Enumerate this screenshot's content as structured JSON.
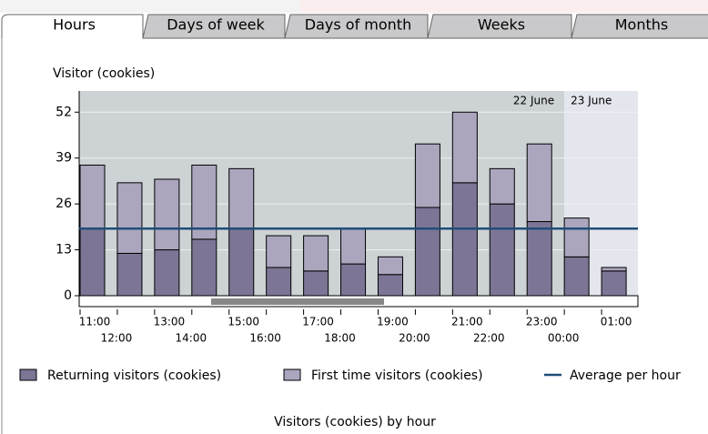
{
  "tabs": [
    "Hours",
    "Days of week",
    "Days of month",
    "Weeks",
    "Months"
  ],
  "chart_data": {
    "type": "stacked-bar",
    "title": "Visitor (cookies)",
    "caption": "Visitors (cookies) by hour",
    "day_labels": [
      "22 June",
      "23 June"
    ],
    "categories": [
      "11:00",
      "12:00",
      "13:00",
      "14:00",
      "15:00",
      "16:00",
      "17:00",
      "18:00",
      "19:00",
      "20:00",
      "21:00",
      "22:00",
      "23:00",
      "00:00",
      "01:00"
    ],
    "series": [
      {
        "name": "Returning visitors (cookies)",
        "color": "#7d7595",
        "values": [
          19,
          12,
          13,
          16,
          19,
          8,
          7,
          9,
          6,
          25,
          32,
          26,
          21,
          11,
          7
        ]
      },
      {
        "name": "First time visitors (cookies)",
        "color": "#aba5be",
        "values": [
          18,
          20,
          20,
          21,
          17,
          9,
          10,
          10,
          5,
          18,
          20,
          10,
          22,
          11,
          1
        ]
      }
    ],
    "average": {
      "name": "Average per hour",
      "color": "#1f4e79",
      "value": 19
    },
    "ylim": [
      0,
      58
    ],
    "yticks": [
      0,
      13,
      26,
      39,
      52
    ],
    "grid": true
  }
}
